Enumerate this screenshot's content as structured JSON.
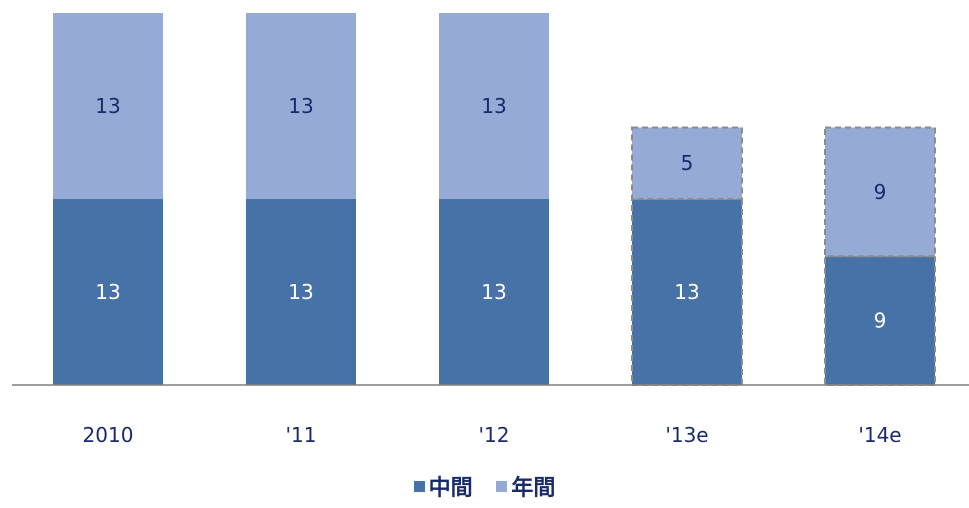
{
  "chart_data": {
    "type": "bar",
    "stacked": true,
    "categories": [
      "2010",
      "'11",
      "'12",
      "'13e",
      "'14e"
    ],
    "series": [
      {
        "name": "中間",
        "values": [
          13,
          13,
          13,
          13,
          9
        ],
        "color": "#4672a7"
      },
      {
        "name": "年間",
        "values": [
          13,
          13,
          13,
          5,
          9
        ],
        "color": "#95aad4"
      }
    ],
    "estimated_categories": [
      "'13e",
      "'14e"
    ],
    "ylim": [
      0,
      26
    ],
    "grid": false,
    "legend_position": "bottom",
    "title": "",
    "xlabel": "",
    "ylabel": ""
  }
}
